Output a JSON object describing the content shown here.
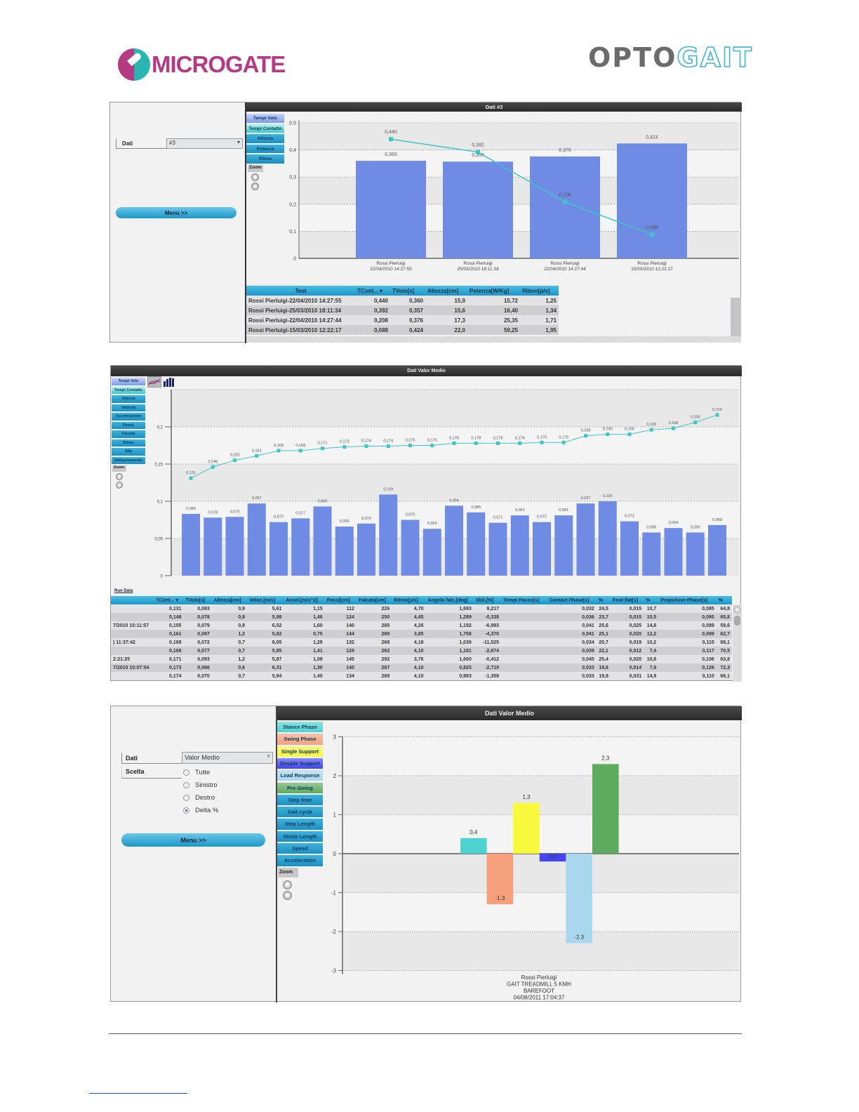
{
  "logos": {
    "microgate": "MICROGATE",
    "microgate_a": "MICRO",
    "microgate_b": "GATE",
    "optogait": "OPTOGAIT",
    "optogait_a": "OPTO",
    "optogait_b": "GAIT"
  },
  "panel1": {
    "title": "Dati #3",
    "form": {
      "dati_label": "Dati",
      "dati_value": "#3",
      "menu_button": "Menu >>"
    },
    "side_buttons": [
      "Tempi Volo",
      "Tempi Contatto",
      "Altezza",
      "Potenza",
      "Ritmo"
    ],
    "zoom_label": "Zoom",
    "table": {
      "headers": [
        "Test",
        "TCont... ▾",
        "TVolo[s]",
        "Altezza[cm]",
        "Potenza[W/Kg]",
        "Ritmo[p/s]"
      ],
      "rows": [
        [
          "Rossi Pierluigi-22/04/2010 14:27:55",
          "0,440",
          "0,360",
          "15,9",
          "15,72",
          "1,25"
        ],
        [
          "Rossi Pierluigi-25/03/2010 18:11:34",
          "0,392",
          "0,357",
          "15,6",
          "16,40",
          "1,34"
        ],
        [
          "Rossi Pierluigi-22/04/2010 14:27:44",
          "0,208",
          "0,376",
          "17,3",
          "25,35",
          "1,71"
        ],
        [
          "Rossi Pierluigi-15/03/2010 12:22:17",
          "0,088",
          "0,424",
          "22,0",
          "59,25",
          "1,95"
        ]
      ]
    }
  },
  "panel2": {
    "title": "Dati Valor Medio",
    "side_buttons": [
      "Tempi Volo",
      "Tempi Contatto",
      "Altezza",
      "Velocità",
      "Accelerazione",
      "Passo",
      "Falcata",
      "Ritmo",
      "Alfa",
      "Sbilanciamento"
    ],
    "zoom_label": "Zoom",
    "run_data_link": "Run Data",
    "table": {
      "headers": [
        "",
        "TCont... ▾",
        "TVolo[s]",
        "Altezza[cm]",
        "Veloc.[m/s]",
        "Accel.[m/s^2]",
        "Passi[cm]",
        "Falcata[cm]",
        "Ritmo[p/s]",
        "Angolo falc.[deg]",
        "Sbil.[%]",
        "Tempi Passo[s]",
        "Contact Phase[s]",
        "%",
        "Foot flat[s]",
        "%",
        "Propulsive Phase[s]",
        "%"
      ],
      "rows": [
        [
          "",
          "0,131",
          "0,083",
          "0,9",
          "5,61",
          "1,15",
          "112",
          "226",
          "4,70",
          "1,693",
          "9,217",
          "",
          "0,032",
          "24,5",
          "0,015",
          "10,7",
          "0,085",
          "64,8"
        ],
        [
          "",
          "0,146",
          "0,078",
          "0,8",
          "5,98",
          "1,46",
          "124",
          "250",
          "4,45",
          "1,289",
          "-0,338",
          "",
          "0,036",
          "23,7",
          "0,015",
          "10,5",
          "0,095",
          "65,8"
        ],
        [
          "7/2010 15:11:57",
          "0,155",
          "0,079",
          "0,8",
          "6,52",
          "1,60",
          "140",
          "285",
          "4,26",
          "1,192",
          "-6,993",
          "",
          "0,041",
          "25,6",
          "0,025",
          "14,8",
          "0,089",
          "59,6"
        ],
        [
          "",
          "0,161",
          "0,097",
          "1,2",
          "5,82",
          "0,75",
          "144",
          "289",
          "3,85",
          "1,758",
          "-4,370",
          "",
          "0,041",
          "25,1",
          "0,020",
          "12,2",
          "0,099",
          "62,7"
        ],
        [
          ") 11:37:42",
          "0,168",
          "0,072",
          "0,7",
          "6,05",
          "1,29",
          "132",
          "268",
          "4,18",
          "1,036",
          "-11,525",
          "",
          "0,034",
          "20,7",
          "0,019",
          "10,2",
          "0,115",
          "69,1"
        ],
        [
          "",
          "0,168",
          "0,077",
          "0,7",
          "5,85",
          "1,41",
          "129",
          "262",
          "4,10",
          "1,181",
          "-2,674",
          "",
          "0,039",
          "22,1",
          "0,012",
          "7,4",
          "0,117",
          "70,5"
        ],
        [
          "2:21:25",
          "0,171",
          "0,093",
          "1,2",
          "5,87",
          "1,08",
          "145",
          "292",
          "3,76",
          "1,600",
          "-0,412",
          "",
          "0,045",
          "25,4",
          "0,020",
          "10,8",
          "0,106",
          "63,8"
        ],
        [
          "7/2010 15:07:54",
          "0,173",
          "0,066",
          "0,6",
          "6,31",
          "1,30",
          "140",
          "287",
          "4,10",
          "0,825",
          "-2,719",
          "",
          "0,033",
          "19,8",
          "0,014",
          "7,9",
          "0,126",
          "72,3"
        ],
        [
          "",
          "0,174",
          "0,070",
          "0,7",
          "5,94",
          "1,40",
          "134",
          "269",
          "4,10",
          "0,983",
          "-1,359",
          "",
          "0,033",
          "19,9",
          "0,031",
          "14,9",
          "0,110",
          "66,1"
        ]
      ]
    }
  },
  "panel3": {
    "title": "Dati Valor Medio",
    "form": {
      "dati_label": "Dati",
      "dati_value": "Valor Medio",
      "scelta_label": "Scelta",
      "menu_button": "Menu >>"
    },
    "radio_options": [
      {
        "label": "Tutte",
        "checked": false
      },
      {
        "label": "Sinistro",
        "checked": false
      },
      {
        "label": "Destro",
        "checked": false
      },
      {
        "label": "Delta %",
        "checked": true
      }
    ],
    "side_buttons": [
      {
        "label": "Stance Phase",
        "color": "#4fd3d0"
      },
      {
        "label": "Swing Phase",
        "color": "#f6a07e"
      },
      {
        "label": "Single Support",
        "color": "#f8f83c"
      },
      {
        "label": "Double Support",
        "color": "#4444f2"
      },
      {
        "label": "Load Response",
        "color": "#a9d8ee"
      },
      {
        "label": "Pre-Swing",
        "color": "#5eaa5e"
      },
      {
        "label": "Step time",
        "color": ""
      },
      {
        "label": "Gait cycle",
        "color": ""
      },
      {
        "label": "Step Length",
        "color": ""
      },
      {
        "label": "Stride Length",
        "color": ""
      },
      {
        "label": "Speed",
        "color": ""
      },
      {
        "label": "Acceleration",
        "color": ""
      }
    ],
    "zoom_label": "Zoom"
  },
  "chart_data": [
    {
      "type": "bar",
      "title": "Dati #3",
      "categories": [
        [
          "Rossi Pierluigi",
          "22/04/2010 14:27:55"
        ],
        [
          "Rossi Pierluigi",
          "25/03/2010 18:11:34"
        ],
        [
          "Rossi Pierluigi",
          "22/04/2010 14:27:44"
        ],
        [
          "Rossi Pierluigi",
          "15/03/2010 12:22:17"
        ]
      ],
      "series": [
        {
          "name": "Tempi Volo",
          "kind": "bar",
          "color": "#6f8be3",
          "values": [
            0.36,
            0.357,
            0.376,
            0.424
          ],
          "labels": [
            "0,360",
            "0,357",
            "0,376",
            "0,424"
          ]
        },
        {
          "name": "Tempi Contatto",
          "kind": "line",
          "color": "#3cc6c6",
          "values": [
            0.44,
            0.392,
            0.208,
            0.088
          ],
          "labels": [
            "0,440",
            "0,392",
            "0,208",
            "0,088"
          ]
        }
      ],
      "ylim": [
        0,
        0.5
      ],
      "yticks": [
        "0",
        "0,1",
        "0,2",
        "0,3",
        "0,4",
        "0,5"
      ],
      "grid": true
    },
    {
      "type": "bar",
      "title": "Dati Valor Medio",
      "series": [
        {
          "name": "Tempi Volo",
          "kind": "bar",
          "color": "#6f8be3",
          "values": [
            0.083,
            0.078,
            0.079,
            0.097,
            0.072,
            0.077,
            0.093,
            0.066,
            0.07,
            0.109,
            0.075,
            0.063,
            0.094,
            0.085,
            0.071,
            0.081,
            0.072,
            0.081,
            0.097,
            0.1,
            0.073,
            0.058,
            0.064,
            0.058,
            0.068
          ],
          "labels": [
            "0,083",
            "0,078",
            "0,079",
            "0,097",
            "0,072",
            "0,077",
            "0,093",
            "0,066",
            "0,070",
            "0,109",
            "0,075",
            "0,063",
            "0,094",
            "0,085",
            "0,071",
            "0,081",
            "0,072",
            "0,081",
            "0,097",
            "0,100",
            "0,073",
            "0,058",
            "0,064",
            "0,058",
            "0,068"
          ]
        },
        {
          "name": "Tempi Contatto",
          "kind": "line",
          "color": "#3cc6c6",
          "values": [
            0.131,
            0.146,
            0.155,
            0.161,
            0.168,
            0.168,
            0.171,
            0.173,
            0.174,
            0.174,
            0.175,
            0.175,
            0.178,
            0.178,
            0.178,
            0.178,
            0.179,
            0.179,
            0.188,
            0.19,
            0.19,
            0.196,
            0.198,
            0.206,
            0.216
          ],
          "labels": [
            "0,131",
            "0,146",
            "0,155",
            "0,161",
            "0,168",
            "0,168",
            "0,171",
            "0,173",
            "0,174",
            "0,174",
            "0,175",
            "0,175",
            "0,178",
            "0,178",
            "0,178",
            "0,178",
            "0,179",
            "0,179",
            "0,188",
            "0,190",
            "0,190",
            "0,196",
            "0,198",
            "0,206",
            "0,216"
          ]
        }
      ],
      "ylim": [
        0,
        0.25
      ],
      "yticks": [
        "0",
        "0,05",
        "0,1",
        "0,15",
        "0,2"
      ],
      "grid": true
    },
    {
      "type": "bar",
      "title": "Dati Valor Medio",
      "categories": [
        "Stance Phase",
        "Swing Phase",
        "Single Support",
        "Double Support",
        "Load Response",
        "Pre-Swing"
      ],
      "values": [
        0.4,
        -1.3,
        1.3,
        -0.2,
        -2.3,
        2.3
      ],
      "labels": [
        "0,4",
        "-1.3",
        "1,3",
        "-0.2",
        "-2.3",
        "2,3"
      ],
      "colors": [
        "#4fd3d0",
        "#f6a07e",
        "#f8f83c",
        "#4444f2",
        "#a9d8ee",
        "#5eaa5e"
      ],
      "ylim": [
        -3,
        3
      ],
      "yticks": [
        "-3",
        "-2",
        "-1",
        "0",
        "1",
        "2",
        "3"
      ],
      "xlabel": [
        "Rossi Pierluigi",
        "GAIT TREADMILL 5 KMH",
        "BAREFOOT",
        "04/08/2011 17:04:37"
      ],
      "grid": true
    }
  ]
}
